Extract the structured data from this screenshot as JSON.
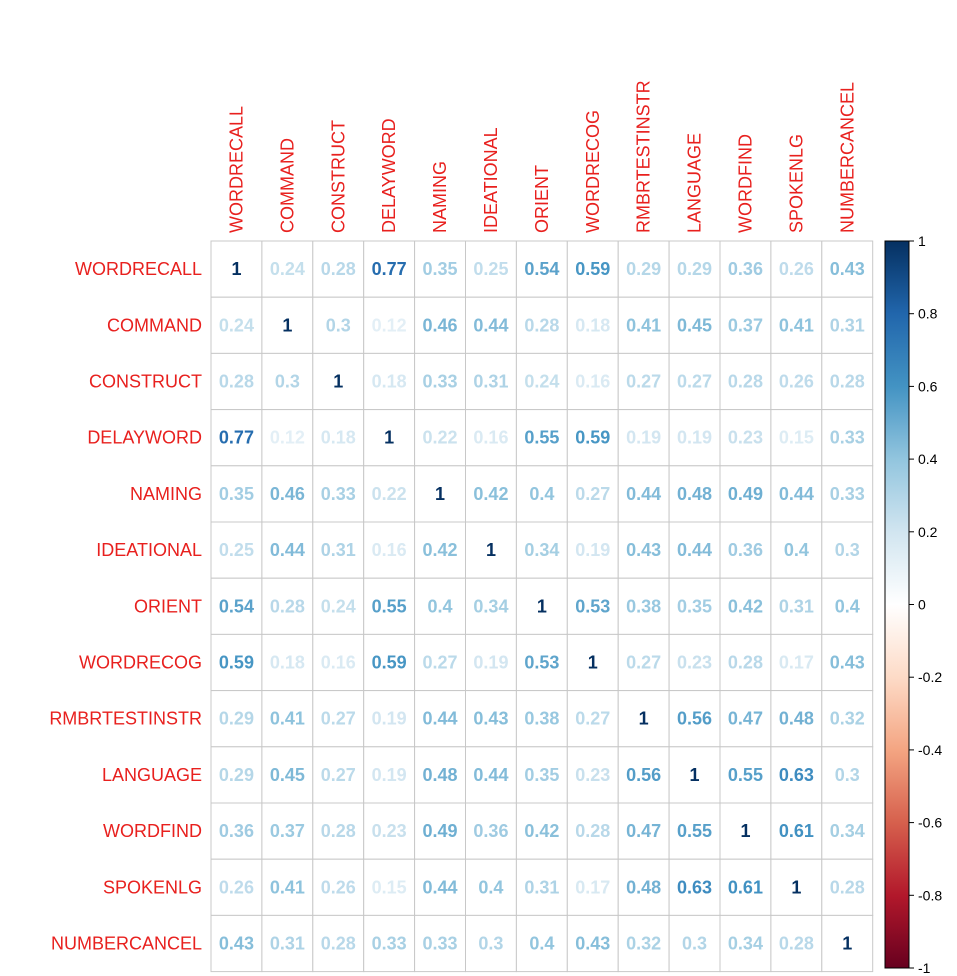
{
  "chart_data": {
    "type": "heatmap",
    "title": "",
    "variables": [
      "WORDRECALL",
      "COMMAND",
      "CONSTRUCT",
      "DELAYWORD",
      "NAMING",
      "IDEATIONAL",
      "ORIENT",
      "WORDRECOG",
      "RMBRTESTINSTR",
      "LANGUAGE",
      "WORDFIND",
      "SPOKENLG",
      "NUMBERCANCEL"
    ],
    "matrix": [
      [
        "1",
        "0.24",
        "0.28",
        "0.77",
        "0.35",
        "0.25",
        "0.54",
        "0.59",
        "0.29",
        "0.29",
        "0.36",
        "0.26",
        "0.43"
      ],
      [
        "0.24",
        "1",
        "0.3",
        "0.12",
        "0.46",
        "0.44",
        "0.28",
        "0.18",
        "0.41",
        "0.45",
        "0.37",
        "0.41",
        "0.31"
      ],
      [
        "0.28",
        "0.3",
        "1",
        "0.18",
        "0.33",
        "0.31",
        "0.24",
        "0.16",
        "0.27",
        "0.27",
        "0.28",
        "0.26",
        "0.28"
      ],
      [
        "0.77",
        "0.12",
        "0.18",
        "1",
        "0.22",
        "0.16",
        "0.55",
        "0.59",
        "0.19",
        "0.19",
        "0.23",
        "0.15",
        "0.33"
      ],
      [
        "0.35",
        "0.46",
        "0.33",
        "0.22",
        "1",
        "0.42",
        "0.4",
        "0.27",
        "0.44",
        "0.48",
        "0.49",
        "0.44",
        "0.33"
      ],
      [
        "0.25",
        "0.44",
        "0.31",
        "0.16",
        "0.42",
        "1",
        "0.34",
        "0.19",
        "0.43",
        "0.44",
        "0.36",
        "0.4",
        "0.3"
      ],
      [
        "0.54",
        "0.28",
        "0.24",
        "0.55",
        "0.4",
        "0.34",
        "1",
        "0.53",
        "0.38",
        "0.35",
        "0.42",
        "0.31",
        "0.4"
      ],
      [
        "0.59",
        "0.18",
        "0.16",
        "0.59",
        "0.27",
        "0.19",
        "0.53",
        "1",
        "0.27",
        "0.23",
        "0.28",
        "0.17",
        "0.43"
      ],
      [
        "0.29",
        "0.41",
        "0.27",
        "0.19",
        "0.44",
        "0.43",
        "0.38",
        "0.27",
        "1",
        "0.56",
        "0.47",
        "0.48",
        "0.32"
      ],
      [
        "0.29",
        "0.45",
        "0.27",
        "0.19",
        "0.48",
        "0.44",
        "0.35",
        "0.23",
        "0.56",
        "1",
        "0.55",
        "0.63",
        "0.3"
      ],
      [
        "0.36",
        "0.37",
        "0.28",
        "0.23",
        "0.49",
        "0.36",
        "0.42",
        "0.28",
        "0.47",
        "0.55",
        "1",
        "0.61",
        "0.34"
      ],
      [
        "0.26",
        "0.41",
        "0.26",
        "0.15",
        "0.44",
        "0.4",
        "0.31",
        "0.17",
        "0.48",
        "0.63",
        "0.61",
        "1",
        "0.28"
      ],
      [
        "0.43",
        "0.31",
        "0.28",
        "0.33",
        "0.33",
        "0.3",
        "0.4",
        "0.43",
        "0.32",
        "0.3",
        "0.34",
        "0.28",
        "1"
      ]
    ],
    "label_color": "#e8201e",
    "colorscale": {
      "range": [
        -1,
        1
      ],
      "ticks": [
        "1",
        "0.8",
        "0.6",
        "0.4",
        "0.2",
        "0",
        "-0.2",
        "-0.4",
        "-0.6",
        "-0.8",
        "-1"
      ],
      "stops": [
        {
          "v": -1,
          "color": "#67001f"
        },
        {
          "v": -0.8,
          "color": "#b2182b"
        },
        {
          "v": -0.6,
          "color": "#d6604d"
        },
        {
          "v": -0.4,
          "color": "#f4a582"
        },
        {
          "v": -0.2,
          "color": "#fddbc7"
        },
        {
          "v": 0,
          "color": "#ffffff"
        },
        {
          "v": 0.2,
          "color": "#d1e5f0"
        },
        {
          "v": 0.4,
          "color": "#92c5de"
        },
        {
          "v": 0.6,
          "color": "#4393c3"
        },
        {
          "v": 0.8,
          "color": "#2166ac"
        },
        {
          "v": 1,
          "color": "#053061"
        }
      ]
    },
    "legend_position": "right",
    "grid": true
  }
}
